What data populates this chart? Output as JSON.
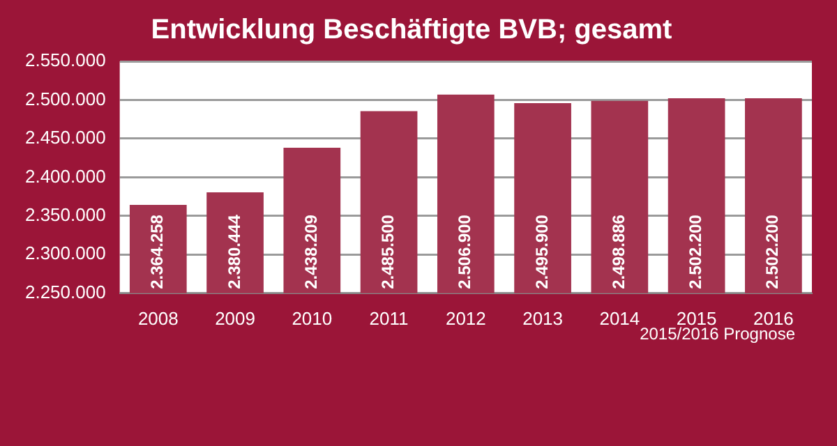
{
  "chart_data": {
    "type": "bar",
    "title": "Entwicklung Beschäftigte BVB; gesamt",
    "categories": [
      "2008",
      "2009",
      "2010",
      "2011",
      "2012",
      "2013",
      "2014",
      "2015",
      "2016"
    ],
    "values": [
      2364258,
      2380444,
      2438209,
      2485500,
      2506900,
      2495900,
      2498886,
      2502200,
      2502200
    ],
    "value_labels": [
      "2.364.258",
      "2.380.444",
      "2.438.209",
      "2.485.500",
      "2.506.900",
      "2.495.900",
      "2.498.886",
      "2.502.200",
      "2.502.200"
    ],
    "color": "#a3334f",
    "ylim": [
      2250000,
      2550000
    ],
    "yticks": [
      {
        "value": 2250000,
        "label": "2.250.000"
      },
      {
        "value": 2300000,
        "label": "2.300.000"
      },
      {
        "value": 2350000,
        "label": "2.350.000"
      },
      {
        "value": 2400000,
        "label": "2.400.000"
      },
      {
        "value": 2450000,
        "label": "2.450.000"
      },
      {
        "value": 2500000,
        "label": "2.500.000"
      },
      {
        "value": 2550000,
        "label": "2.550.000"
      }
    ],
    "grid": "y",
    "legend": false,
    "annotations": [
      "2015/2016 Prognose"
    ]
  }
}
